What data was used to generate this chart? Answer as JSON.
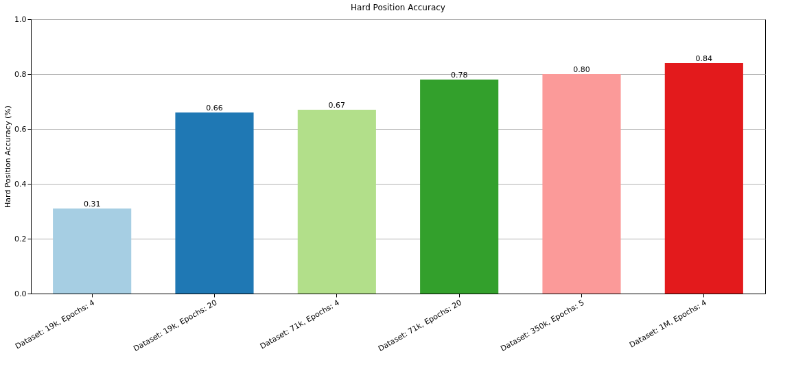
{
  "chart_data": {
    "type": "bar",
    "title": "Hard Position Accuracy",
    "ylabel": "Hard Position Accuracy (%)",
    "categories": [
      "Dataset: 19k, Epochs: 4",
      "Dataset: 19k, Epochs: 20",
      "Dataset: 71k, Epochs: 4",
      "Dataset: 71k, Epochs: 20",
      "Dataset: 350k, Epochs: 5",
      "Dataset: 1M, Epochs: 4"
    ],
    "values": [
      0.31,
      0.66,
      0.67,
      0.78,
      0.8,
      0.84
    ],
    "value_labels": [
      "0.31",
      "0.66",
      "0.67",
      "0.78",
      "0.80",
      "0.84"
    ],
    "colors": [
      "#a6cee3",
      "#1f78b4",
      "#b2df8a",
      "#33a02c",
      "#fb9a99",
      "#e31a1c"
    ],
    "ylim": [
      0,
      1
    ],
    "yticks": [
      {
        "value": 0,
        "label": "0.0"
      },
      {
        "value": 0.2,
        "label": "0.2"
      },
      {
        "value": 0.4,
        "label": "0.4"
      },
      {
        "value": 0.6,
        "label": "0.6"
      },
      {
        "value": 0.8,
        "label": "0.8"
      },
      {
        "value": 1,
        "label": "1.0"
      }
    ],
    "grid": "y"
  }
}
